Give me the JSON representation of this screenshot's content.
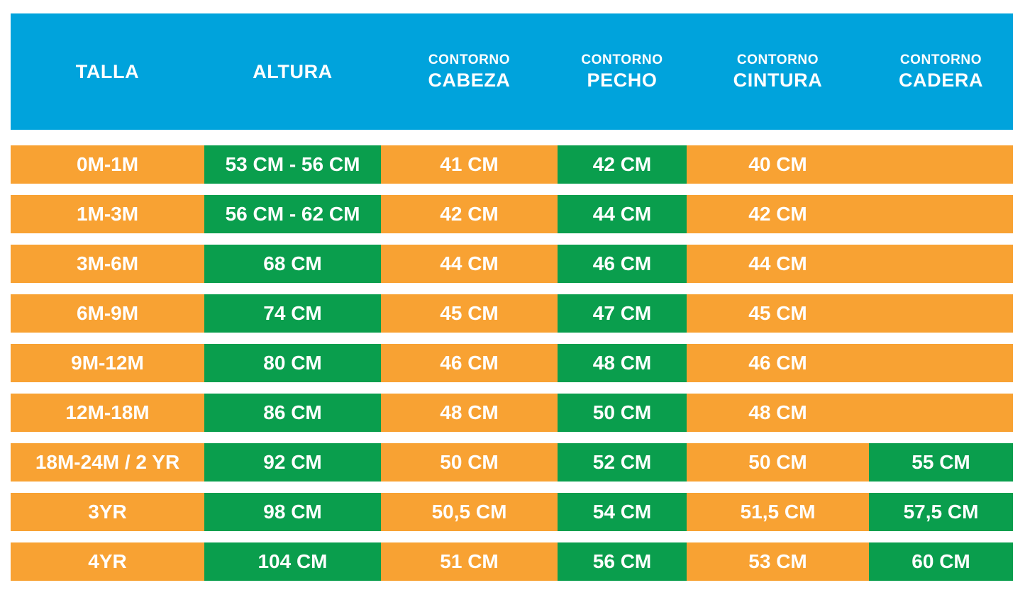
{
  "palette": {
    "blue": "#00A3DC",
    "orange": "#F8A233",
    "green": "#0A9E4D",
    "text_on_fill": "#FFFFFF",
    "background": "#FFFFFF"
  },
  "header": {
    "columns": [
      {
        "top": "",
        "label": "TALLA"
      },
      {
        "top": "",
        "label": "ALTURA"
      },
      {
        "top": "CONTORNO",
        "label": "CABEZA"
      },
      {
        "top": "CONTORNO",
        "label": "PECHO"
      },
      {
        "top": "CONTORNO",
        "label": "CINTURA"
      },
      {
        "top": "CONTORNO",
        "label": "CADERA"
      }
    ]
  },
  "rows": [
    {
      "cells": [
        {
          "text": "0M-1M",
          "color": "orange"
        },
        {
          "text": "53 CM - 56 CM",
          "color": "green"
        },
        {
          "text": "41 CM",
          "color": "orange"
        },
        {
          "text": "42 CM",
          "color": "green"
        },
        {
          "text": "40 CM",
          "color": "orange"
        },
        {
          "text": "",
          "color": "orange"
        }
      ]
    },
    {
      "cells": [
        {
          "text": "1M-3M",
          "color": "orange"
        },
        {
          "text": "56 CM - 62 CM",
          "color": "green"
        },
        {
          "text": "42 CM",
          "color": "orange"
        },
        {
          "text": "44 CM",
          "color": "green"
        },
        {
          "text": "42 CM",
          "color": "orange"
        },
        {
          "text": "",
          "color": "orange"
        }
      ]
    },
    {
      "cells": [
        {
          "text": "3M-6M",
          "color": "orange"
        },
        {
          "text": "68 CM",
          "color": "green"
        },
        {
          "text": "44 CM",
          "color": "orange"
        },
        {
          "text": "46 CM",
          "color": "green"
        },
        {
          "text": "44 CM",
          "color": "orange"
        },
        {
          "text": "",
          "color": "orange"
        }
      ]
    },
    {
      "cells": [
        {
          "text": "6M-9M",
          "color": "orange"
        },
        {
          "text": "74 CM",
          "color": "green"
        },
        {
          "text": "45 CM",
          "color": "orange"
        },
        {
          "text": "47 CM",
          "color": "green"
        },
        {
          "text": "45 CM",
          "color": "orange"
        },
        {
          "text": "",
          "color": "orange"
        }
      ]
    },
    {
      "cells": [
        {
          "text": "9M-12M",
          "color": "orange"
        },
        {
          "text": "80 CM",
          "color": "green"
        },
        {
          "text": "46 CM",
          "color": "orange"
        },
        {
          "text": "48 CM",
          "color": "green"
        },
        {
          "text": "46 CM",
          "color": "orange"
        },
        {
          "text": "",
          "color": "orange"
        }
      ]
    },
    {
      "cells": [
        {
          "text": "12M-18M",
          "color": "orange"
        },
        {
          "text": "86 CM",
          "color": "green"
        },
        {
          "text": "48 CM",
          "color": "orange"
        },
        {
          "text": "50 CM",
          "color": "green"
        },
        {
          "text": "48 CM",
          "color": "orange"
        },
        {
          "text": "",
          "color": "orange"
        }
      ]
    },
    {
      "cells": [
        {
          "text": "18M-24M / 2 YR",
          "color": "orange"
        },
        {
          "text": "92 CM",
          "color": "green"
        },
        {
          "text": "50 CM",
          "color": "orange"
        },
        {
          "text": "52 CM",
          "color": "green"
        },
        {
          "text": "50 CM",
          "color": "orange"
        },
        {
          "text": "55 CM",
          "color": "green"
        }
      ]
    },
    {
      "cells": [
        {
          "text": "3YR",
          "color": "orange"
        },
        {
          "text": "98 CM",
          "color": "green"
        },
        {
          "text": "50,5 CM",
          "color": "orange"
        },
        {
          "text": "54 CM",
          "color": "green"
        },
        {
          "text": "51,5 CM",
          "color": "orange"
        },
        {
          "text": "57,5 CM",
          "color": "green"
        }
      ]
    },
    {
      "cells": [
        {
          "text": "4YR",
          "color": "orange"
        },
        {
          "text": "104 CM",
          "color": "green"
        },
        {
          "text": "51 CM",
          "color": "orange"
        },
        {
          "text": "56 CM",
          "color": "green"
        },
        {
          "text": "53 CM",
          "color": "orange"
        },
        {
          "text": "60 CM",
          "color": "green"
        }
      ]
    }
  ],
  "chart_data": {
    "type": "table",
    "columns": [
      "TALLA",
      "ALTURA",
      "CONTORNO CABEZA",
      "CONTORNO PECHO",
      "CONTORNO CINTURA",
      "CONTORNO CADERA"
    ],
    "rows": [
      [
        "0M-1M",
        "53 CM - 56 CM",
        "41 CM",
        "42 CM",
        "40 CM",
        ""
      ],
      [
        "1M-3M",
        "56 CM - 62 CM",
        "42 CM",
        "44 CM",
        "42 CM",
        ""
      ],
      [
        "3M-6M",
        "68 CM",
        "44 CM",
        "46 CM",
        "44 CM",
        ""
      ],
      [
        "6M-9M",
        "74 CM",
        "45 CM",
        "47 CM",
        "45 CM",
        ""
      ],
      [
        "9M-12M",
        "80 CM",
        "46 CM",
        "48 CM",
        "46 CM",
        ""
      ],
      [
        "12M-18M",
        "86 CM",
        "48 CM",
        "50 CM",
        "48 CM",
        ""
      ],
      [
        "18M-24M / 2 YR",
        "92 CM",
        "50 CM",
        "52 CM",
        "50 CM",
        "55 CM"
      ],
      [
        "3YR",
        "98 CM",
        "50,5 CM",
        "54 CM",
        "51,5 CM",
        "57,5 CM"
      ],
      [
        "4YR",
        "104 CM",
        "51 CM",
        "56 CM",
        "53 CM",
        "60 CM"
      ]
    ],
    "layout_hints": {
      "header_fill": "#00A3DC",
      "default_cell_fill": "#F8A233",
      "highlight_cell_fill": "#0A9E4D",
      "highlighted_columns_all_rows": [
        "ALTURA",
        "CONTORNO PECHO"
      ],
      "highlighted_cadera_rows": [
        "18M-24M / 2 YR",
        "3YR",
        "4YR"
      ],
      "text_color": "#FFFFFF"
    }
  }
}
